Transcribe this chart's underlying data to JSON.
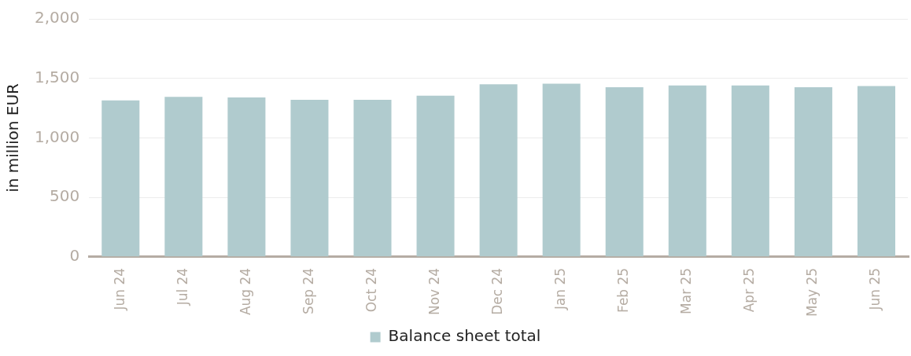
{
  "chart_data": {
    "type": "bar",
    "ylabel": "in million EUR",
    "categories": [
      "Jun 24",
      "Jul 24",
      "Aug 24",
      "Sep 24",
      "Oct 24",
      "Nov 24",
      "Dec 24",
      "Jan 25",
      "Feb 25",
      "Mar 25",
      "Apr 25",
      "May 25",
      "Jun 25"
    ],
    "series": [
      {
        "name": "Balance sheet total",
        "color": "#b0cbce",
        "values": [
          1315,
          1345,
          1340,
          1320,
          1320,
          1355,
          1450,
          1455,
          1425,
          1440,
          1440,
          1425,
          1435
        ]
      }
    ],
    "ylim": [
      0,
      2000
    ],
    "yticks": [
      {
        "value": 0,
        "label": "0"
      },
      {
        "value": 500,
        "label": "500"
      },
      {
        "value": 1000,
        "label": "1,000"
      },
      {
        "value": 1500,
        "label": "1,500"
      },
      {
        "value": 2000,
        "label": "2,000"
      }
    ],
    "grid": "y",
    "legend": "bottom"
  }
}
